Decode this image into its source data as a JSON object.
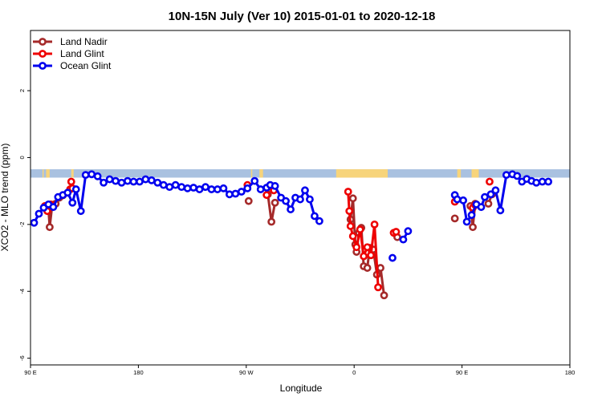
{
  "chart_data": {
    "type": "line",
    "title": "10N-15N July (Ver 10)   2015-01-01 to 2020-12-18",
    "xlabel": "Longitude",
    "ylabel": "XCO2 - MLO trend (ppm)",
    "x_ticks": [
      {
        "value": 90,
        "label": "90 E"
      },
      {
        "value": 180,
        "label": "180"
      },
      {
        "value": 270,
        "label": "90 W"
      },
      {
        "value": 360,
        "label": "0"
      },
      {
        "value": 450,
        "label": "90 E"
      },
      {
        "value": 540,
        "label": "180"
      }
    ],
    "y_ticks": [
      -6,
      -4,
      -2,
      0,
      2
    ],
    "xlim": [
      90,
      540
    ],
    "ylim": [
      -6.2,
      3.8
    ],
    "grid": false,
    "legend_position": "top-left",
    "series": [
      {
        "name": "Land Nadir",
        "color": "#a52a2a",
        "segments": [
          [
            [
              103,
              -1.45
            ],
            [
              105,
              -1.52
            ],
            [
              106,
              -2.08
            ],
            [
              108,
              -1.45
            ],
            [
              111,
              -1.38
            ],
            [
              114,
              -1.2
            ],
            [
              117,
              -1.13
            ]
          ],
          [
            [
              272,
              -1.3
            ]
          ],
          [
            [
              288,
              -1.1
            ],
            [
              291,
              -1.92
            ],
            [
              294,
              -1.35
            ]
          ],
          [
            [
              357,
              -1.85
            ],
            [
              359,
              -1.22
            ],
            [
              361,
              -2.6
            ],
            [
              362,
              -2.82
            ],
            [
              364,
              -2.25
            ],
            [
              366,
              -2.1
            ],
            [
              368,
              -3.25
            ],
            [
              371,
              -3.3
            ],
            [
              373,
              -2.7
            ],
            [
              376,
              -2.75
            ],
            [
              379,
              -3.5
            ],
            [
              382,
              -3.3
            ],
            [
              385,
              -4.12
            ]
          ],
          [
            [
              396,
              -2.38
            ]
          ],
          [
            [
              444,
              -1.82
            ]
          ],
          [
            [
              457,
              -1.45
            ],
            [
              459,
              -2.08
            ],
            [
              461,
              -1.38
            ]
          ],
          [
            [
              472,
              -1.38
            ],
            [
              475,
              -1.1
            ]
          ]
        ]
      },
      {
        "name": "Land Glint",
        "color": "#ee0000",
        "segments": [
          [
            [
              102,
              -1.45
            ],
            [
              104,
              -1.6
            ],
            [
              107,
              -1.4
            ]
          ],
          [
            [
              123,
              -0.95
            ],
            [
              124,
              -0.72
            ],
            [
              125,
              -0.92
            ]
          ],
          [
            [
              271,
              -0.82
            ]
          ],
          [
            [
              287,
              -1.12
            ],
            [
              289,
              -0.87
            ],
            [
              293,
              -0.98
            ]
          ],
          [
            [
              355,
              -1.02
            ],
            [
              356,
              -1.6
            ],
            [
              357,
              -2.05
            ],
            [
              359,
              -2.35
            ],
            [
              362,
              -2.68
            ],
            [
              365,
              -2.15
            ],
            [
              368,
              -2.95
            ],
            [
              371,
              -2.68
            ],
            [
              374,
              -2.92
            ],
            [
              377,
              -2.0
            ],
            [
              380,
              -3.88
            ]
          ],
          [
            [
              393,
              -2.25
            ],
            [
              395,
              -2.22
            ]
          ],
          [
            [
              444,
              -1.32
            ]
          ],
          [
            [
              459,
              -1.5
            ],
            [
              461,
              -1.42
            ]
          ],
          [
            [
              473,
              -0.72
            ]
          ]
        ]
      },
      {
        "name": "Ocean Glint",
        "color": "#0000ee",
        "segments": [
          [
            [
              93,
              -1.95
            ],
            [
              97,
              -1.68
            ],
            [
              101,
              -1.5
            ],
            [
              105,
              -1.4
            ],
            [
              109,
              -1.48
            ],
            [
              113,
              -1.18
            ],
            [
              117,
              -1.12
            ],
            [
              121,
              -1.05
            ],
            [
              125,
              -1.35
            ],
            [
              128,
              -0.95
            ],
            [
              132,
              -1.6
            ],
            [
              136,
              -0.52
            ],
            [
              141,
              -0.5
            ],
            [
              146,
              -0.56
            ],
            [
              151,
              -0.75
            ],
            [
              156,
              -0.65
            ],
            [
              161,
              -0.7
            ],
            [
              166,
              -0.75
            ],
            [
              171,
              -0.7
            ],
            [
              176,
              -0.72
            ],
            [
              181,
              -0.72
            ],
            [
              186,
              -0.65
            ],
            [
              191,
              -0.68
            ],
            [
              196,
              -0.75
            ],
            [
              201,
              -0.82
            ],
            [
              206,
              -0.88
            ],
            [
              211,
              -0.82
            ],
            [
              216,
              -0.88
            ],
            [
              221,
              -0.92
            ],
            [
              226,
              -0.9
            ],
            [
              231,
              -0.95
            ],
            [
              236,
              -0.88
            ],
            [
              241,
              -0.95
            ],
            [
              246,
              -0.95
            ],
            [
              251,
              -0.92
            ],
            [
              256,
              -1.1
            ],
            [
              261,
              -1.08
            ],
            [
              266,
              -1.02
            ],
            [
              271,
              -0.92
            ],
            [
              277,
              -0.7
            ],
            [
              282,
              -0.95
            ],
            [
              287,
              -0.9
            ],
            [
              290,
              -0.82
            ],
            [
              294,
              -0.85
            ],
            [
              299,
              -1.2
            ],
            [
              303,
              -1.3
            ],
            [
              307,
              -1.55
            ],
            [
              311,
              -1.2
            ],
            [
              315,
              -1.25
            ],
            [
              319,
              -0.98
            ],
            [
              323,
              -1.25
            ],
            [
              327,
              -1.75
            ],
            [
              331,
              -1.9
            ]
          ],
          [
            [
              392,
              -3.0
            ]
          ],
          [
            [
              401,
              -2.45
            ],
            [
              405,
              -2.2
            ]
          ],
          [
            [
              444,
              -1.12
            ],
            [
              446,
              -1.25
            ],
            [
              451,
              -1.28
            ],
            [
              454,
              -1.92
            ],
            [
              458,
              -1.72
            ],
            [
              462,
              -1.4
            ],
            [
              466,
              -1.48
            ],
            [
              469,
              -1.18
            ],
            [
              474,
              -1.1
            ],
            [
              478,
              -0.98
            ],
            [
              482,
              -1.58
            ],
            [
              487,
              -0.52
            ],
            [
              492,
              -0.5
            ],
            [
              496,
              -0.55
            ],
            [
              500,
              -0.72
            ],
            [
              504,
              -0.64
            ],
            [
              508,
              -0.7
            ],
            [
              512,
              -0.75
            ],
            [
              517,
              -0.72
            ],
            [
              522,
              -0.72
            ]
          ]
        ]
      }
    ],
    "map_strip": {
      "y_top": -0.35,
      "y_bottom": -0.6,
      "ocean_color": "#a9c1e0",
      "land_color": "#f7d47b",
      "land_ranges": [
        [
          100,
          101
        ],
        [
          103,
          106
        ],
        [
          124,
          126
        ],
        [
          274,
          275
        ],
        [
          281,
          284
        ],
        [
          345,
          388
        ],
        [
          446,
          449
        ],
        [
          458,
          464
        ]
      ]
    }
  }
}
